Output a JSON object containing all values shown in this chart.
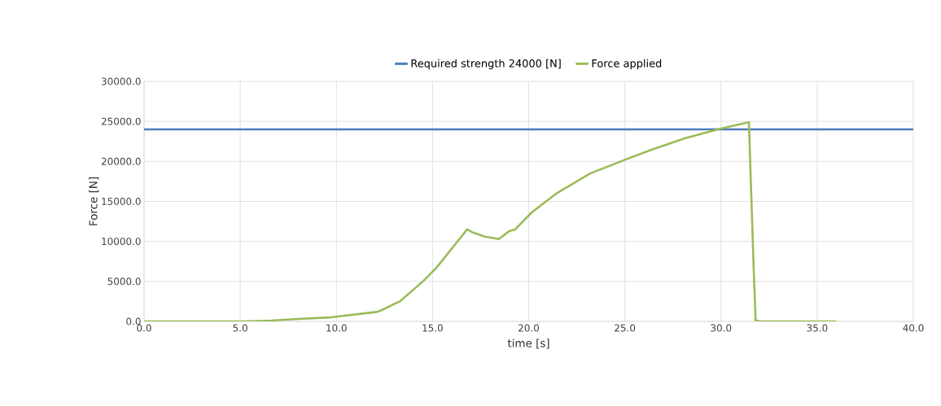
{
  "chart_data": {
    "type": "line",
    "xlabel": "time [s]",
    "ylabel": "Force [N]",
    "legend": "top",
    "grid": true,
    "marker": "none",
    "line_style": "solid",
    "xlim": [
      0,
      40
    ],
    "ylim": [
      0,
      30000
    ],
    "xticks": [
      {
        "value": 0,
        "label": "0.0"
      },
      {
        "value": 5,
        "label": "5.0"
      },
      {
        "value": 10,
        "label": "10.0"
      },
      {
        "value": 15,
        "label": "15.0"
      },
      {
        "value": 20,
        "label": "20.0"
      },
      {
        "value": 25,
        "label": "25.0"
      },
      {
        "value": 30,
        "label": "30.0"
      },
      {
        "value": 35,
        "label": "35.0"
      },
      {
        "value": 40,
        "label": "40.0"
      }
    ],
    "yticks": [
      {
        "value": 0,
        "label": "0.0"
      },
      {
        "value": 5000,
        "label": "5000.0"
      },
      {
        "value": 10000,
        "label": "10000.0"
      },
      {
        "value": 15000,
        "label": "15000.0"
      },
      {
        "value": 20000,
        "label": "20000.0"
      },
      {
        "value": 25000,
        "label": "25000.0"
      },
      {
        "value": 30000,
        "label": "30000.0"
      }
    ],
    "series": [
      {
        "name": "Required strength 24000 [N]",
        "color": "#4a7ebb",
        "x": [
          0,
          40
        ],
        "values": [
          24000,
          24000
        ]
      },
      {
        "name": "Force applied",
        "color": "#9bbb59",
        "x": [
          0,
          5.2,
          6.6,
          8.0,
          9.7,
          12.1,
          12.3,
          13.3,
          14.5,
          15.2,
          16.4,
          16.8,
          17.1,
          17.7,
          18.45,
          19.0,
          19.3,
          20.15,
          20.9,
          21.45,
          23.2,
          25.0,
          26.45,
          28.15,
          30.0,
          31.45,
          31.7,
          31.8,
          31.85,
          32.0,
          36.0
        ],
        "values": [
          0,
          0,
          100,
          300,
          500,
          1180,
          1350,
          2500,
          5000,
          6700,
          10300,
          11500,
          11100,
          10600,
          10300,
          11300,
          11500,
          13600,
          15000,
          16000,
          18500,
          20200,
          21500,
          22900,
          24100,
          24900,
          6500,
          0,
          100,
          0,
          0
        ]
      }
    ]
  }
}
